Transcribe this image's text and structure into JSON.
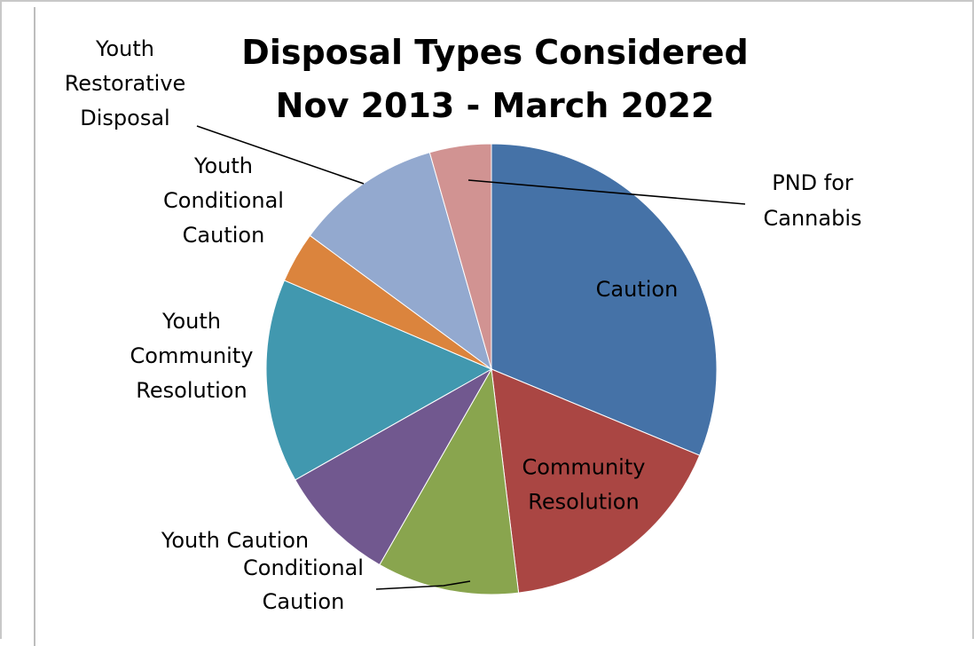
{
  "chart_data": {
    "type": "pie",
    "title": [
      "Disposal Types Considered",
      "Nov 2013 - March 2022"
    ],
    "slices": [
      {
        "label": [
          "Caution"
        ],
        "value": 32.5,
        "color": "#4572A7",
        "inside": true
      },
      {
        "label": [
          "Community",
          "Resolution"
        ],
        "value": 17.5,
        "color": "#AA4643",
        "inside": true
      },
      {
        "label": [
          "Conditional",
          "Caution"
        ],
        "value": 10.6,
        "color": "#89A54E",
        "inside": false,
        "leader": true
      },
      {
        "label": [
          "Youth  Caution"
        ],
        "value": 8.9,
        "color": "#71588F",
        "inside": false
      },
      {
        "label": [
          "Youth",
          "Community",
          "Resolution"
        ],
        "value": 15.2,
        "color": "#4198AF",
        "inside": false
      },
      {
        "label": [
          "Youth",
          "Conditional",
          "Caution"
        ],
        "value": 3.8,
        "color": "#DB843D",
        "inside": false
      },
      {
        "label": [
          "Youth",
          "Restorative",
          "Disposal"
        ],
        "value": 10.9,
        "color": "#93A9CF",
        "inside": false,
        "leader": true
      },
      {
        "label": [
          "PND for",
          "Cannabis"
        ],
        "value": 4.6,
        "color": "#D19392",
        "inside": false,
        "leader": true
      }
    ]
  }
}
